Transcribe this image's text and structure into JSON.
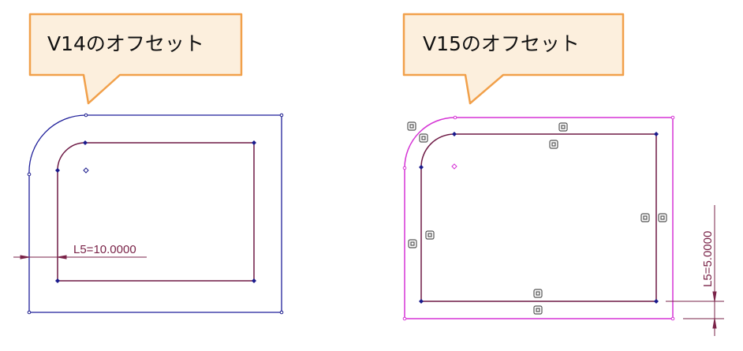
{
  "left_panel": {
    "callout": "V14のオフセット",
    "dimension": "L5=10.0000"
  },
  "right_panel": {
    "callout": "V15のオフセット",
    "dimension": "L5=5.0000"
  },
  "colors": {
    "callout_fill": "#fcefdd",
    "callout_border": "#f1a04a",
    "left_outer_offset": "#1f1f9a",
    "right_outer_offset": "#d534d5",
    "inner_profile": "#6e1a45",
    "dimension": "#7a2348",
    "vertex_marker": "#1a1a8c",
    "constraint_icon": "#555555"
  }
}
